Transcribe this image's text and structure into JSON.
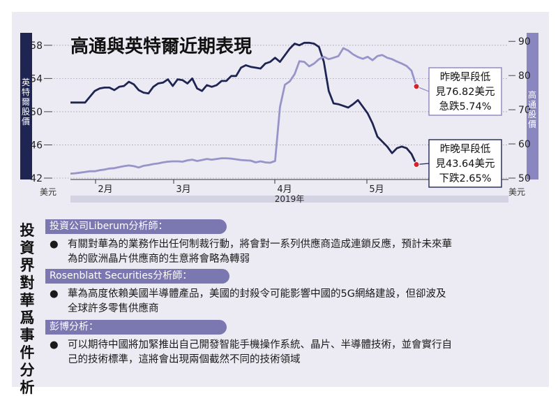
{
  "chart_data": {
    "type": "line",
    "title": "高通與英特爾近期表現",
    "xlabel": "2019年",
    "x_unit": "美元",
    "right_unit": "美元",
    "x_ticks": [
      "2月",
      "3月",
      "4月",
      "5月"
    ],
    "left_axis": {
      "label": "英特爾股價",
      "ticks": [
        42,
        46,
        50,
        54,
        58
      ],
      "range": [
        42,
        59.5
      ]
    },
    "right_axis": {
      "label": "高通股價",
      "ticks": [
        50,
        60,
        70,
        80,
        90
      ],
      "range": [
        50,
        92.5
      ]
    },
    "series": [
      {
        "name": "英特爾股價",
        "axis": "left",
        "color": "#1f2552",
        "values": [
          51.1,
          51.1,
          51.1,
          51.1,
          51.8,
          52.5,
          52.8,
          52.9,
          52.9,
          52.6,
          53.0,
          53.1,
          53.6,
          53.3,
          52.6,
          52.3,
          52.2,
          53.0,
          53.4,
          53.5,
          53.9,
          53.1,
          53.9,
          53.8,
          53.4,
          54.0,
          52.8,
          52.5,
          53.2,
          53.0,
          53.2,
          53.7,
          53.7,
          54.3,
          54.3,
          55.3,
          55.6,
          55.4,
          55.3,
          55.2,
          55.8,
          56.0,
          56.5,
          56.0,
          56.8,
          57.6,
          58.2,
          58.0,
          58.3,
          58.3,
          58.2,
          57.8,
          56.0,
          52.5,
          51.0,
          50.9,
          50.7,
          50.5,
          50.9,
          51.4,
          50.6,
          49.8,
          48.6,
          47.0,
          46.4,
          45.8,
          45.0,
          45.6,
          45.8,
          45.6,
          44.9,
          43.64
        ]
      },
      {
        "name": "高通股價",
        "axis": "right",
        "color": "#9794c9",
        "values": [
          51.3,
          51.4,
          51.6,
          51.8,
          52.0,
          52.0,
          52.3,
          52.5,
          52.8,
          52.9,
          53.2,
          53.5,
          53.7,
          53.5,
          53.1,
          53.6,
          53.8,
          54.1,
          54.3,
          54.6,
          54.8,
          54.9,
          54.9,
          54.8,
          55.2,
          55.4,
          55.0,
          55.3,
          55.6,
          55.4,
          55.6,
          55.8,
          55.8,
          55.7,
          55.5,
          55.3,
          55.2,
          55.1,
          54.6,
          54.9,
          54.6,
          54.5,
          55.0,
          70.8,
          77.3,
          78.3,
          80.4,
          84.2,
          84.0,
          82.7,
          83.5,
          84.8,
          85.5,
          84.8,
          85.2,
          85.7,
          88.0,
          87.3,
          86.2,
          85.4,
          84.9,
          85.5,
          84.5,
          85.7,
          86.0,
          85.2,
          84.8,
          84.1,
          83.5,
          82.8,
          81.4,
          76.82
        ]
      }
    ],
    "annotations": [
      {
        "series": "高通股價",
        "lines": [
          "昨晚早段低",
          "見76.82美元",
          "急跌5.74%"
        ]
      },
      {
        "series": "英特爾股價",
        "lines": [
          "昨晚早段低",
          "見43.64美元",
          "下跌2.65%"
        ]
      }
    ],
    "grid": true
  },
  "analysis": {
    "title": "投資界對華爲事件分析",
    "sections": [
      {
        "header": "投資公司Liberum分析師：",
        "lines": [
          "有關對華為的業務作出任何制裁行動，將會對一系列供應商造成連鎖反應，預計未來華",
          "為的歐洲晶片供應商的生意將會略為轉弱"
        ]
      },
      {
        "header": "Rosenblatt Securities分析師：",
        "lines": [
          "華為高度依賴美國半導體產品，美國的封殺令可能影響中國的5G網絡建設，但卻波及",
          "全球許多零售供應商"
        ]
      },
      {
        "header": "彭博分析：",
        "lines": [
          "可以期待中國將加緊推出自己開發智能手機操作系統、晶片、半導體技術，並會實行自",
          "己的技術標準，這將會出現兩個截然不同的技術領域"
        ]
      }
    ],
    "bullet": "●"
  }
}
